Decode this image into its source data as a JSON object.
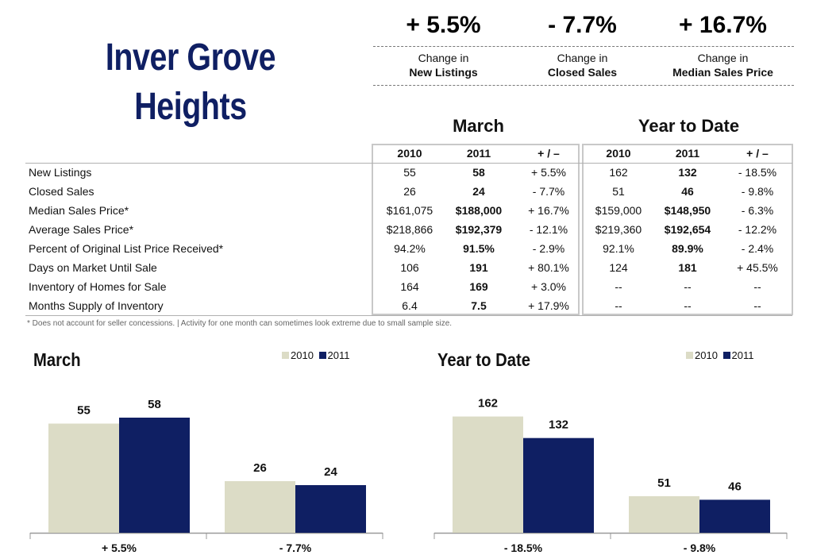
{
  "title": {
    "line1": "Inver Grove",
    "line2": "Heights"
  },
  "kpis": [
    {
      "value": "+ 5.5%",
      "label1": "Change in",
      "label2": "New Listings"
    },
    {
      "value": "- 7.7%",
      "label1": "Change in",
      "label2": "Closed Sales"
    },
    {
      "value": "+ 16.7%",
      "label1": "Change in",
      "label2": "Median Sales Price"
    }
  ],
  "sections": {
    "month": "March",
    "ytd": "Year to Date"
  },
  "table": {
    "headers": [
      "2010",
      "2011",
      "+ / –",
      "2010",
      "2011",
      "+ / –"
    ],
    "rows": [
      {
        "label": "New Listings",
        "cells": [
          "55",
          "58",
          "+ 5.5%",
          "162",
          "132",
          "- 18.5%"
        ]
      },
      {
        "label": "Closed Sales",
        "cells": [
          "26",
          "24",
          "- 7.7%",
          "51",
          "46",
          "- 9.8%"
        ]
      },
      {
        "label": "Median Sales Price*",
        "cells": [
          "$161,075",
          "$188,000",
          "+ 16.7%",
          "$159,000",
          "$148,950",
          "- 6.3%"
        ]
      },
      {
        "label": "Average Sales Price*",
        "cells": [
          "$218,866",
          "$192,379",
          "- 12.1%",
          "$219,360",
          "$192,654",
          "- 12.2%"
        ]
      },
      {
        "label": "Percent of Original List Price Received*",
        "cells": [
          "94.2%",
          "91.5%",
          "- 2.9%",
          "92.1%",
          "89.9%",
          "- 2.4%"
        ]
      },
      {
        "label": "Days on Market Until Sale",
        "cells": [
          "106",
          "191",
          "+ 80.1%",
          "124",
          "181",
          "+ 45.5%"
        ]
      },
      {
        "label": "Inventory of Homes for Sale",
        "cells": [
          "164",
          "169",
          "+ 3.0%",
          "--",
          "--",
          "--"
        ]
      },
      {
        "label": "Months Supply of Inventory",
        "cells": [
          "6.4",
          "7.5",
          "+ 17.9%",
          "--",
          "--",
          "--"
        ]
      }
    ]
  },
  "footnote": "* Does not account for seller concessions.  |  Activity for one month can sometimes look extreme due to small sample size.",
  "colors": {
    "title": "#0f1f63",
    "series2010": "#dcdcc6",
    "series2011": "#0f1f63"
  },
  "chart_data": [
    {
      "type": "bar",
      "title": "March",
      "legend": [
        "2010",
        "2011"
      ],
      "categories": [
        "+ 5.5%",
        "- 7.7%"
      ],
      "series": [
        {
          "name": "2010",
          "values": [
            55,
            26
          ]
        },
        {
          "name": "2011",
          "values": [
            58,
            24
          ]
        }
      ],
      "ylim": [
        0,
        64
      ]
    },
    {
      "type": "bar",
      "title": "Year to Date",
      "legend": [
        "2010",
        "2011"
      ],
      "categories": [
        "- 18.5%",
        "- 9.8%"
      ],
      "series": [
        {
          "name": "2010",
          "values": [
            162,
            51
          ]
        },
        {
          "name": "2011",
          "values": [
            132,
            46
          ]
        }
      ],
      "ylim": [
        0,
        177
      ]
    }
  ]
}
